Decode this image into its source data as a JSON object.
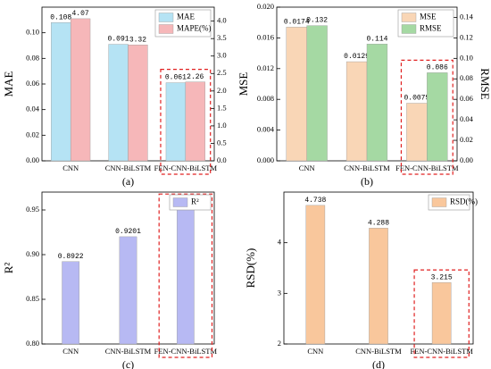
{
  "chart_data": [
    {
      "type": "bar",
      "caption": "(a)",
      "ylabel": "MAE",
      "categories": [
        "CNN",
        "CNN-BiLSTM",
        "FEN-CNN-BiLSTM"
      ],
      "ylim": [
        0,
        0.12
      ],
      "yticks": [
        {
          "value": 0,
          "label": "0.00"
        },
        0.02,
        0.04,
        0.06,
        0.08,
        {
          "value": 0.1,
          "label": "0.10"
        }
      ],
      "y2lim": [
        0,
        4.4
      ],
      "y2ticks": [
        {
          "value": 0,
          "label": "0.0"
        },
        0.5,
        {
          "value": 1,
          "label": "1.0"
        },
        1.5,
        {
          "value": 2,
          "label": "2.0"
        },
        2.5,
        {
          "value": 3,
          "label": "3.0"
        },
        3.5,
        {
          "value": 4,
          "label": "4.0"
        }
      ],
      "series": [
        {
          "name": "MAE",
          "color": "#b5e3f4",
          "values": [
            0.108,
            0.091,
            0.061
          ]
        },
        {
          "name": "MAPE(%)",
          "color": "#f6b7b9",
          "axis": "y2",
          "values": [
            4.07,
            3.32,
            2.26
          ]
        }
      ]
    },
    {
      "type": "bar",
      "caption": "(b)",
      "ylabel": "MSE",
      "y2label": "RMSE",
      "categories": [
        "CNN",
        "CNN-BiLSTM",
        "FEN-CNN-BiLSTM"
      ],
      "ylim": [
        0,
        0.02
      ],
      "yticks": [
        {
          "value": 0,
          "label": "0.000"
        },
        0.004,
        0.008,
        0.012,
        0.016,
        {
          "value": 0.02,
          "label": "0.020"
        }
      ],
      "y2lim": [
        0,
        0.15
      ],
      "y2ticks": [
        {
          "value": 0,
          "label": "0.00"
        },
        0.02,
        0.04,
        0.06,
        0.08,
        {
          "value": 0.1,
          "label": "0.10"
        },
        0.12,
        0.14
      ],
      "series": [
        {
          "name": "MSE",
          "color": "#f9d6b6",
          "values": [
            0.0174,
            0.0129,
            0.0075
          ]
        },
        {
          "name": "RMSE",
          "color": "#a5d9a3",
          "axis": "y2",
          "values": [
            0.132,
            0.114,
            0.086
          ]
        }
      ]
    },
    {
      "type": "bar",
      "caption": "(c)",
      "ylabel": "R²",
      "categories": [
        "CNN",
        "CNN-BiLSTM",
        "FEN-CNN-BiLSTM"
      ],
      "ylim": [
        0.8,
        0.97
      ],
      "yticks": [
        {
          "value": 0.8,
          "label": "0.80"
        },
        0.85,
        {
          "value": 0.9,
          "label": "0.90"
        },
        0.95
      ],
      "series": [
        {
          "name": "R²",
          "color": "#b7b9f3",
          "values": [
            0.8922,
            0.9201,
            0.9538
          ]
        }
      ]
    },
    {
      "type": "bar",
      "caption": "(d)",
      "ylabel": "RSD(%)",
      "categories": [
        "CNN",
        "CNN-BiLSTM",
        "FEN-CNN-BiLSTM"
      ],
      "ylim": [
        2,
        5
      ],
      "yticks": [
        2,
        3,
        4
      ],
      "series": [
        {
          "name": "RSD(%)",
          "color": "#f9c79c",
          "values": [
            4.738,
            4.288,
            3.215
          ]
        }
      ]
    }
  ]
}
